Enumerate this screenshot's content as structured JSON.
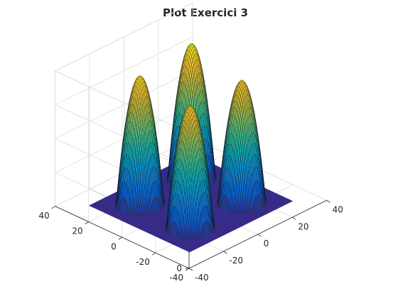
{
  "chart_data": {
    "type": "surface",
    "title": "Plot Exercici 3",
    "xlabel": "",
    "ylabel": "",
    "zlabel": "",
    "xlim": [
      -40,
      40
    ],
    "ylim": [
      -40,
      40
    ],
    "zlim": [
      0,
      2
    ],
    "grid": true,
    "x_ticks": [
      "-40",
      "-20",
      "0",
      "20",
      "40"
    ],
    "y_ticks": [
      "-40",
      "-20",
      "0",
      "20",
      "40"
    ],
    "z_ticks": [
      "0",
      "0.5",
      "1",
      "1.5",
      "2"
    ],
    "colormap": "parula",
    "surface_domain": [
      -30,
      30
    ],
    "bumps": [
      {
        "x": -15,
        "y": -15,
        "radius": 10,
        "height": 1.8
      },
      {
        "x": -15,
        "y": 15,
        "radius": 10,
        "height": 1.9
      },
      {
        "x": 15,
        "y": -15,
        "radius": 10,
        "height": 1.8
      },
      {
        "x": 15,
        "y": 15,
        "radius": 10,
        "height": 2.0
      }
    ]
  }
}
